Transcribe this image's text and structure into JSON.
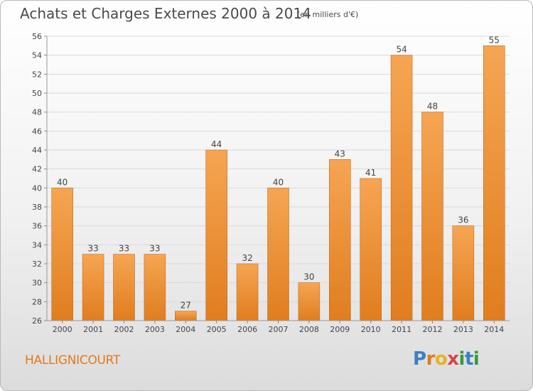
{
  "title": "Achats et Charges Externes 2000 à 2014",
  "subtitle": "(en milliers d'€)",
  "commune": "HALLIGNICOURT",
  "logo": {
    "letters": [
      "P",
      "r",
      "o",
      "x",
      "i",
      "t",
      "i"
    ],
    "colors": [
      "#3a7fc1",
      "#e07a1e",
      "#e8b321",
      "#d64545",
      "#3a9a3a",
      "#3a7fc1",
      "#3a9a3a"
    ]
  },
  "colors": {
    "bar_light": "#f6a553",
    "bar_dark": "#e07d1f",
    "bar_edge": "#c8691a",
    "grid": "#d9d9d9",
    "text": "#444444"
  },
  "chart_data": {
    "type": "bar",
    "categories": [
      "2000",
      "2001",
      "2002",
      "2003",
      "2004",
      "2005",
      "2006",
      "2007",
      "2008",
      "2009",
      "2010",
      "2011",
      "2012",
      "2013",
      "2014"
    ],
    "values": [
      40,
      33,
      33,
      33,
      27,
      44,
      32,
      40,
      30,
      43,
      41,
      54,
      48,
      36,
      55
    ],
    "title": "Achats et Charges Externes 2000 à 2014",
    "subtitle": "(en milliers d'€)",
    "ylim": [
      26,
      56
    ],
    "yticks": [
      26,
      28,
      30,
      32,
      34,
      36,
      38,
      40,
      42,
      44,
      46,
      48,
      50,
      52,
      54,
      56
    ],
    "grid": true,
    "data_labels": true
  }
}
